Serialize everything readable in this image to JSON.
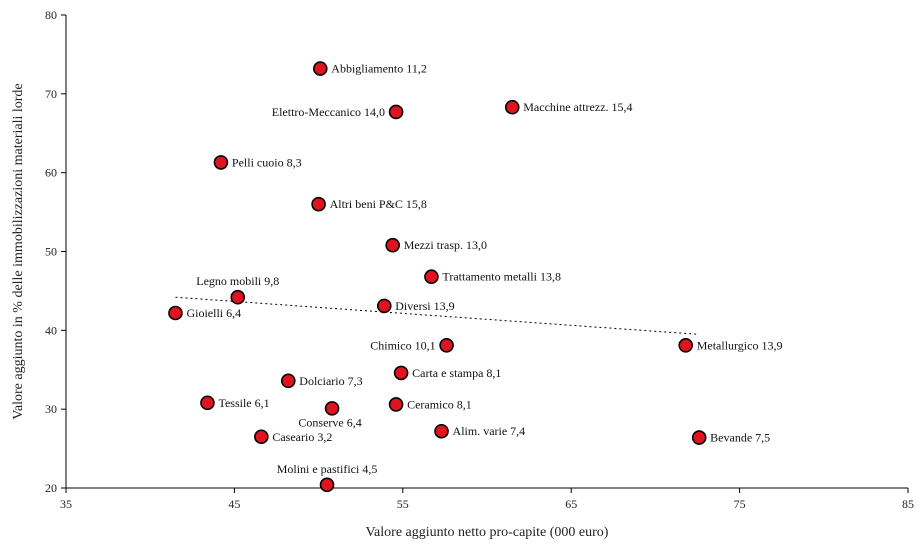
{
  "chart_data": {
    "type": "scatter",
    "xlabel": "Valore aggiunto netto pro-capite (000 euro)",
    "ylabel": "Valore aggiunto in % delle immobilizzazioni materiali lorde",
    "xlim": [
      35,
      85
    ],
    "ylim": [
      20,
      80
    ],
    "xticks": [
      "35",
      "45",
      "55",
      "65",
      "75",
      "85"
    ],
    "yticks": [
      "20",
      "30",
      "40",
      "50",
      "60",
      "70",
      "80"
    ],
    "grid": false,
    "legend": "none",
    "marker_color": "#e0141e",
    "marker_edge_color": "#000000",
    "trendline": {
      "style": "dotted",
      "x": [
        41.5,
        72.5
      ],
      "y": [
        44.2,
        39.5
      ]
    },
    "points": [
      {
        "label": "Abbigliamento 11,2",
        "x": 50.1,
        "y": 73.2,
        "anchor": "right"
      },
      {
        "label": "Elettro-Meccanico 14,0",
        "x": 54.6,
        "y": 67.7,
        "anchor": "left"
      },
      {
        "label": "Macchine attrezz. 15,4",
        "x": 61.5,
        "y": 68.3,
        "anchor": "right"
      },
      {
        "label": "Pelli cuoio 8,3",
        "x": 44.2,
        "y": 61.3,
        "anchor": "right"
      },
      {
        "label": "Altri beni P&C 15,8",
        "x": 50.0,
        "y": 56.0,
        "anchor": "right"
      },
      {
        "label": "Mezzi trasp. 13,0",
        "x": 54.4,
        "y": 50.8,
        "anchor": "right"
      },
      {
        "label": "Trattamento metalli 13,8",
        "x": 56.7,
        "y": 46.8,
        "anchor": "right"
      },
      {
        "label": "Legno mobili 9,8",
        "x": 45.2,
        "y": 44.2,
        "anchor": "above"
      },
      {
        "label": "Diversi 13,9",
        "x": 53.9,
        "y": 43.1,
        "anchor": "right"
      },
      {
        "label": "Gioielli 6,4",
        "x": 41.5,
        "y": 42.2,
        "anchor": "right"
      },
      {
        "label": "Chimico 10,1",
        "x": 57.6,
        "y": 38.1,
        "anchor": "left"
      },
      {
        "label": "Metallurgico 13,9",
        "x": 71.8,
        "y": 38.1,
        "anchor": "right"
      },
      {
        "label": "Carta e stampa 8,1",
        "x": 54.9,
        "y": 34.6,
        "anchor": "right"
      },
      {
        "label": "Dolciario 7,3",
        "x": 48.2,
        "y": 33.6,
        "anchor": "right"
      },
      {
        "label": "Tessile 6,1",
        "x": 43.4,
        "y": 30.8,
        "anchor": "right"
      },
      {
        "label": "Conserve 6,4",
        "x": 50.8,
        "y": 30.1,
        "anchor": "below"
      },
      {
        "label": "Ceramico 8,1",
        "x": 54.6,
        "y": 30.6,
        "anchor": "right"
      },
      {
        "label": "Caseario 3,2",
        "x": 46.6,
        "y": 26.5,
        "anchor": "right"
      },
      {
        "label": "Alim. varie 7,4",
        "x": 57.3,
        "y": 27.2,
        "anchor": "right"
      },
      {
        "label": "Bevande 7,5",
        "x": 72.6,
        "y": 26.4,
        "anchor": "right"
      },
      {
        "label": "Molini e pastifici 4,5",
        "x": 50.5,
        "y": 20.4,
        "anchor": "above"
      }
    ]
  }
}
